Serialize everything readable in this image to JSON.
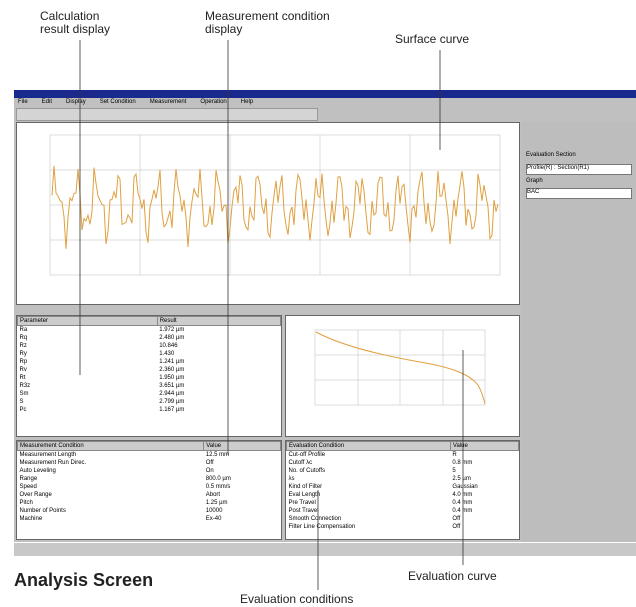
{
  "callouts": {
    "calculation_result": [
      "Calculation",
      "result display"
    ],
    "measurement_condition": [
      "Measurement condition",
      "display"
    ],
    "surface_curve": "Surface curve",
    "evaluation_curve": "Evaluation curve",
    "evaluation_conditions": "Evaluation conditions"
  },
  "caption": "Analysis Screen",
  "window": {
    "menu": [
      "File",
      "Edit",
      "Display",
      "Set Condition",
      "Measurement",
      "Operation",
      "Help"
    ],
    "side_panel": {
      "section_label": "Evaluation Section",
      "section_value": "Profile(R) : Section(R1)",
      "graph_label": "Graph",
      "graph_value": "BAC"
    },
    "parameters": {
      "headers": [
        "Parameter",
        "Result"
      ],
      "rows": [
        [
          "Ra",
          "1.972 µm"
        ],
        [
          "Rq",
          "2.480 µm"
        ],
        [
          "Rz",
          "10.846"
        ],
        [
          "Ry",
          "1.430"
        ],
        [
          "Rp",
          "1.241 µm"
        ],
        [
          "Rv",
          "2.360 µm"
        ],
        [
          "Rt",
          "1.950 µm"
        ],
        [
          "R3z",
          "3.651 µm"
        ],
        [
          "Sm",
          "2.944 µm"
        ],
        [
          "S",
          "2.799 µm"
        ],
        [
          "Pc",
          "1.167 µm"
        ]
      ]
    },
    "measurement_conditions": {
      "headers": [
        "Measurement Condition",
        "Value"
      ],
      "rows": [
        [
          "Measurement Length",
          "12.5 mm"
        ],
        [
          "Measurement Run Direc.",
          "Off"
        ],
        [
          "Auto Leveling",
          "On"
        ],
        [
          "Range",
          "800.0 µm"
        ],
        [
          "Speed",
          "0.5 mm/s"
        ],
        [
          "Over Range",
          "Abort"
        ],
        [
          "Pitch",
          "1.25 µm"
        ],
        [
          "Number of Points",
          "10000"
        ],
        [
          "Machine",
          "Ex-40"
        ]
      ]
    },
    "evaluation_conditions": {
      "headers": [
        "Evaluation Condition",
        "Value"
      ],
      "rows": [
        [
          "Cut-off Profile",
          "R"
        ],
        [
          "Cutoff λc",
          "0.8 mm"
        ],
        [
          "No. of Cutoffs",
          "5"
        ],
        [
          "λs",
          "2.5 µm"
        ],
        [
          "Kind of Filter",
          "Gaussian"
        ],
        [
          "Eval Length",
          "4.0 mm"
        ],
        [
          "Pre Travel",
          "0.4 mm"
        ],
        [
          "Post Travel",
          "0.4 mm"
        ],
        [
          "Smooth Connection",
          "Off"
        ],
        [
          "Filter Line Compensation",
          "Off"
        ]
      ]
    }
  }
}
